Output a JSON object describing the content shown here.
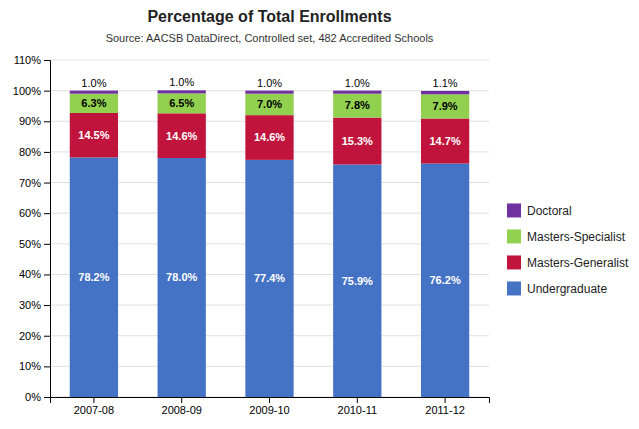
{
  "chart_data": {
    "type": "bar",
    "stacked": true,
    "title": "Percentage of Total Enrollments",
    "subtitle": "Source:  AACSB  DataDirect, Controlled set,  482 Accredited Schools",
    "categories": [
      "2007-08",
      "2008-09",
      "2009-10",
      "2010-11",
      "2011-12"
    ],
    "series": [
      {
        "name": "Undergraduate",
        "color": "#4472C4",
        "values": [
          78.2,
          78.0,
          77.4,
          75.9,
          76.2
        ],
        "value_labels": [
          "78.2%",
          "78.0%",
          "77.4%",
          "75.9%",
          "76.2%"
        ]
      },
      {
        "name": "Masters-Generalist",
        "color": "#C0143C",
        "values": [
          14.5,
          14.6,
          14.6,
          15.3,
          14.7
        ],
        "value_labels": [
          "14.5%",
          "14.6%",
          "14.6%",
          "15.3%",
          "14.7%"
        ]
      },
      {
        "name": "Masters-Specialist",
        "color": "#92D050",
        "values": [
          6.3,
          6.5,
          7.0,
          7.8,
          7.9
        ],
        "value_labels": [
          "6.3%",
          "6.5%",
          "7.0%",
          "7.8%",
          "7.9%"
        ]
      },
      {
        "name": "Doctoral",
        "color": "#7030A0",
        "values": [
          1.0,
          1.0,
          1.0,
          1.0,
          1.1
        ],
        "value_labels": [
          "1.0%",
          "1.0%",
          "1.0%",
          "1.0%",
          "1.1%"
        ]
      }
    ],
    "data_labels": true,
    "ylim": [
      0,
      110
    ],
    "yticks": [
      {
        "value": 0,
        "label": "0%"
      },
      {
        "value": 10,
        "label": "10%"
      },
      {
        "value": 20,
        "label": "20%"
      },
      {
        "value": 30,
        "label": "30%"
      },
      {
        "value": 40,
        "label": "40%"
      },
      {
        "value": 50,
        "label": "50%"
      },
      {
        "value": 60,
        "label": "60%"
      },
      {
        "value": 70,
        "label": "70%"
      },
      {
        "value": 80,
        "label": "80%"
      },
      {
        "value": 90,
        "label": "90%"
      },
      {
        "value": 100,
        "label": "100%"
      },
      {
        "value": 110,
        "label": "110%"
      }
    ],
    "grid": true,
    "legend": "right"
  }
}
